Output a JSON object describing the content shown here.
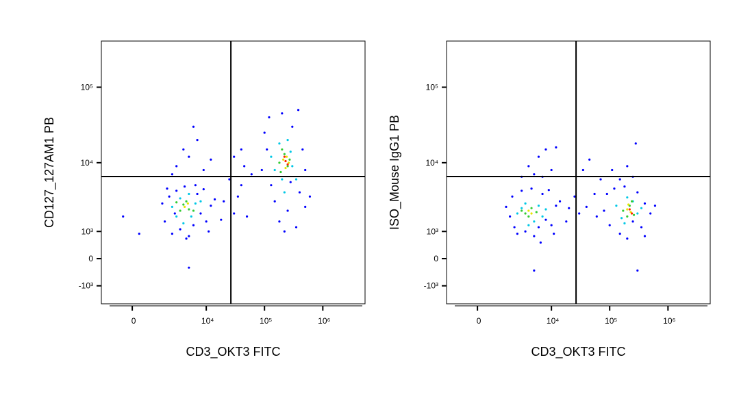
{
  "chart_data": [
    {
      "type": "scatter",
      "xlabel": "CD3_OKT3 FITC",
      "ylabel": "CD127_127AM1 PB",
      "scale": "biexponential",
      "xlim": [
        -1670,
        5300000
      ],
      "ylim": [
        -2000,
        408000
      ],
      "xticks": [
        0,
        {
          "value": 10000,
          "label": "10⁴"
        },
        {
          "value": 100000,
          "label": "10⁵"
        },
        {
          "value": 1000000,
          "label": "10⁶"
        }
      ],
      "yticks": [
        {
          "value": -1000,
          "label": "-10³"
        },
        0,
        {
          "value": 1000,
          "label": "10³"
        },
        {
          "value": 10000,
          "label": "10⁴"
        },
        {
          "value": 100000,
          "label": "10⁵"
        }
      ],
      "quadrant": {
        "x": 26500,
        "y": 6540
      },
      "series": [
        {
          "color": "#0000ff",
          "x": [
            1800,
            2200,
            2500,
            3000,
            3500,
            4200,
            5000,
            6000,
            7000,
            8000,
            9000,
            10000,
            12000,
            14000,
            1600,
            2800,
            6500,
            11000,
            2000,
            4500,
            3000,
            5000,
            7000,
            4000,
            9000,
            2500,
            12000,
            6000,
            20000,
            30000,
            40000,
            25000,
            50000,
            60000,
            35000,
            18000,
            45000,
            40000,
            30000,
            90000,
            100000,
            120000,
            150000,
            180000,
            200000,
            250000,
            300000,
            350000,
            400000,
            500000,
            450000,
            600000,
            130000,
            280000,
            220000,
            380000,
            110000,
            500000,
            -400,
            300,
            5000
          ],
          "values": [
            1500,
            3500,
            900,
            4200,
            1100,
            4800,
            800,
            1300,
            3800,
            2000,
            4400,
            1500,
            2600,
            3200,
            2800,
            2000,
            5000,
            1000,
            4500,
            700,
            9000,
            12000,
            20000,
            15000,
            8000,
            7000,
            11000,
            30000,
            3000,
            2000,
            5000,
            6000,
            1800,
            7000,
            3500,
            1600,
            9000,
            15000,
            12000,
            8000,
            25000,
            40000,
            3000,
            1500,
            45000,
            2200,
            30000,
            1200,
            4000,
            2500,
            15000,
            3500,
            5000,
            5500,
            1000,
            50000,
            15000,
            8000,
            1800,
            900,
            -300
          ]
        },
        {
          "color": "#00c8e6",
          "x": [
            2500,
            3500,
            5500,
            6500,
            4000,
            8000,
            3000,
            5000,
            150000,
            180000,
            250000,
            300000,
            130000,
            280000,
            200000,
            220000,
            350000
          ],
          "values": [
            2500,
            3300,
            1800,
            2800,
            1400,
            3000,
            1800,
            3800,
            8000,
            18000,
            20000,
            9000,
            12000,
            14000,
            6000,
            4000,
            6000
          ]
        },
        {
          "color": "#33cc33",
          "x": [
            3500,
            4500,
            5000,
            4000,
            6000,
            3000,
            180000,
            220000,
            250000,
            200000,
            270000,
            190000
          ],
          "values": [
            2200,
            3000,
            2300,
            2700,
            2200,
            2900,
            10000,
            13000,
            9000,
            15000,
            11000,
            7500
          ]
        },
        {
          "color": "#e6e600",
          "x": [
            4200,
            4800,
            210000,
            240000,
            230000,
            260000
          ],
          "values": [
            2500,
            2800,
            11000,
            12000,
            8500,
            10000
          ]
        },
        {
          "color": "#ff2a00",
          "x": [
            230000,
            250000,
            220000
          ],
          "values": [
            10500,
            9500,
            12000
          ]
        }
      ]
    },
    {
      "type": "scatter",
      "xlabel": "CD3_OKT3 FITC",
      "ylabel": "ISO_Mouse IgG1 PB",
      "scale": "biexponential",
      "xlim": [
        -1670,
        5300000
      ],
      "ylim": [
        -2000,
        408000
      ],
      "xticks": [
        0,
        {
          "value": 10000,
          "label": "10⁴"
        },
        {
          "value": 100000,
          "label": "10⁵"
        },
        {
          "value": 1000000,
          "label": "10⁶"
        }
      ],
      "yticks": [
        {
          "value": -1000,
          "label": "-10³"
        },
        0,
        {
          "value": 1000,
          "label": "10³"
        },
        {
          "value": 10000,
          "label": "10⁴"
        },
        {
          "value": 100000,
          "label": "10⁵"
        }
      ],
      "quadrant": {
        "x": 26500,
        "y": 6540
      },
      "series": [
        {
          "color": "#0000ff",
          "x": [
            1800,
            2000,
            2500,
            3000,
            3500,
            4500,
            5000,
            6000,
            7000,
            8000,
            9000,
            10000,
            12000,
            14000,
            1500,
            2200,
            6500,
            11000,
            20000,
            25000,
            30000,
            18000,
            4000,
            6000,
            8000,
            10000,
            5000,
            12000,
            7000,
            3000,
            40000,
            55000,
            60000,
            70000,
            45000,
            35000,
            80000,
            90000,
            100000,
            120000,
            150000,
            180000,
            200000,
            250000,
            300000,
            350000,
            400000,
            500000,
            600000,
            250000,
            200000,
            280000,
            150000,
            110000,
            400000,
            300000,
            5000
          ],
          "values": [
            1800,
            3500,
            900,
            4200,
            1000,
            4500,
            800,
            1200,
            3800,
            1600,
            4300,
            1300,
            2600,
            3000,
            2500,
            1200,
            550,
            900,
            2400,
            3500,
            2000,
            1500,
            9000,
            12000,
            15000,
            8000,
            7000,
            16000,
            6500,
            6500,
            2500,
            3800,
            1800,
            6000,
            11000,
            8000,
            2200,
            3800,
            1300,
            4500,
            900,
            4800,
            700,
            1500,
            4000,
            1200,
            2800,
            2000,
            2600,
            6500,
            9000,
            18000,
            6000,
            8000,
            800,
            -400,
            -400
          ]
        },
        {
          "color": "#00c8e6",
          "x": [
            2500,
            3500,
            5000,
            6000,
            4000,
            8000,
            3000,
            7000,
            130000,
            160000,
            250000,
            300000,
            200000,
            180000,
            350000
          ],
          "values": [
            2000,
            2800,
            1500,
            2600,
            1300,
            2300,
            2400,
            1800,
            2600,
            1700,
            3000,
            2000,
            3400,
            1400,
            2400
          ]
        },
        {
          "color": "#33cc33",
          "x": [
            3500,
            4500,
            4000,
            5500,
            3000,
            170000,
            220000,
            260000,
            200000,
            240000
          ],
          "values": [
            2000,
            2400,
            1800,
            2100,
            2200,
            2200,
            2600,
            1900,
            1800,
            3000
          ]
        },
        {
          "color": "#e6e600",
          "x": [
            4000,
            4500,
            200000,
            230000,
            210000
          ],
          "values": [
            2200,
            2000,
            2300,
            2100,
            2700
          ]
        },
        {
          "color": "#ff2a00",
          "x": [
            220000,
            240000
          ],
          "values": [
            2300,
            2000
          ]
        }
      ]
    }
  ]
}
